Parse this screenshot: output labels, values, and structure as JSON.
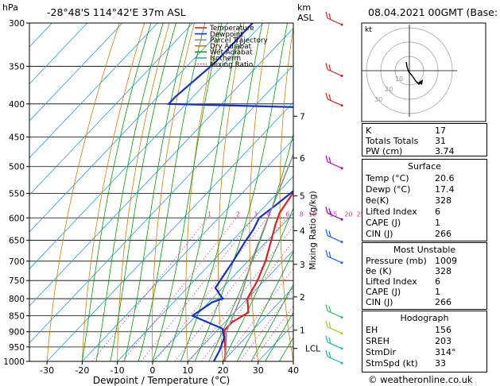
{
  "header": {
    "location": "-28°48'S  114°42'E  37m  ASL",
    "datetime": "08.04.2021  00GMT  (Base: 00)",
    "hpa_label": "hPa",
    "km_label": "km",
    "asl_label": "ASL"
  },
  "chart_data": {
    "type": "line",
    "title": "",
    "xlabel": "Dewpoint / Temperature (°C)",
    "ylabel": "hPa",
    "secondary_ylabel": "Mixing Ratio (g/kg)",
    "xlim": [
      -35,
      40
    ],
    "ylim": [
      1000,
      300
    ],
    "y_scale": "log",
    "x_ticks": [
      "-30",
      "-20",
      "-10",
      "0",
      "10",
      "20",
      "30",
      "40"
    ],
    "pressure_levels": [
      "300",
      "350",
      "400",
      "450",
      "500",
      "550",
      "600",
      "650",
      "700",
      "750",
      "800",
      "850",
      "900",
      "950",
      "1000"
    ],
    "km_ticks": [
      {
        "label": "7",
        "p": 418
      },
      {
        "label": "6",
        "p": 485
      },
      {
        "label": "5",
        "p": 555
      },
      {
        "label": "4",
        "p": 628
      },
      {
        "label": "3",
        "p": 708
      },
      {
        "label": "2",
        "p": 795
      },
      {
        "label": "1",
        "p": 895
      },
      {
        "label": "LCL",
        "p": 955
      }
    ],
    "mixing_ratio_labels": [
      "1",
      "2",
      "3",
      "4",
      "6",
      "8",
      "10",
      "15",
      "20",
      "25"
    ],
    "series": [
      {
        "name": "Temperature",
        "color": "#e02020",
        "points": [
          [
            -18,
            335
          ],
          [
            -16,
            365
          ],
          [
            -14.5,
            398
          ],
          [
            -14,
            405
          ],
          [
            -11,
            455
          ],
          [
            -9,
            495
          ],
          [
            -6,
            540
          ],
          [
            -4,
            590
          ],
          [
            -2,
            615
          ],
          [
            1,
            650
          ],
          [
            5,
            700
          ],
          [
            8,
            750
          ],
          [
            10,
            800
          ],
          [
            14,
            840
          ],
          [
            12,
            870
          ],
          [
            12,
            895
          ],
          [
            15,
            930
          ],
          [
            18,
            965
          ],
          [
            20.6,
            1000
          ]
        ]
      },
      {
        "name": "Dewpoint",
        "color": "#1030d0",
        "points": [
          [
            -63,
            300
          ],
          [
            -63,
            345
          ],
          [
            -65,
            390
          ],
          [
            -65,
            400
          ],
          [
            -25,
            405
          ],
          [
            -16,
            420
          ],
          [
            -11,
            470
          ],
          [
            -11,
            497
          ],
          [
            -8,
            510
          ],
          [
            -6,
            545
          ],
          [
            -7.5,
            580
          ],
          [
            -8.5,
            600
          ],
          [
            -7,
            625
          ],
          [
            -6,
            655
          ],
          [
            -4,
            705
          ],
          [
            -2,
            770
          ],
          [
            3,
            800
          ],
          [
            1,
            810
          ],
          [
            -1,
            850
          ],
          [
            11,
            890
          ],
          [
            14,
            920
          ],
          [
            16,
            960
          ],
          [
            17.4,
            1000
          ]
        ]
      },
      {
        "name": "Parcel Trajectory",
        "color": "#909090",
        "points": [
          [
            -36,
            300
          ],
          [
            -24,
            400
          ],
          [
            -14,
            500
          ],
          [
            -6,
            600
          ],
          [
            1,
            700
          ],
          [
            8,
            800
          ],
          [
            13,
            900
          ],
          [
            17,
            950
          ],
          [
            20.6,
            1000
          ]
        ]
      }
    ],
    "legend": [
      {
        "label": "Temperature",
        "color": "#e02020",
        "dash": "solid"
      },
      {
        "label": "Dewpoint",
        "color": "#1030d0",
        "dash": "solid"
      },
      {
        "label": "Parcel Trajectory",
        "color": "#909090",
        "dash": "solid"
      },
      {
        "label": "Dry Adiabat",
        "color": "#d08000",
        "dash": "solid"
      },
      {
        "label": "Wet Adiabat",
        "color": "#00a000",
        "dash": "solid"
      },
      {
        "label": "Isotherm",
        "color": "#20a0e0",
        "dash": "solid"
      },
      {
        "label": "Mixing Ratio",
        "color": "#e030b0",
        "dash": "dotted"
      }
    ],
    "grid": true,
    "legend_placement": "top-left"
  },
  "hodograph": {
    "label": "kt",
    "ring_labels": [
      "10",
      "20",
      "30"
    ]
  },
  "indices": {
    "rows": [
      {
        "label": "K",
        "value": "17"
      },
      {
        "label": "Totals Totals",
        "value": "31"
      },
      {
        "label": "PW (cm)",
        "value": "3.74"
      }
    ]
  },
  "surface": {
    "title": "Surface",
    "rows": [
      {
        "label": "Temp (°C)",
        "value": "20.6"
      },
      {
        "label": "Dewp (°C)",
        "value": "17.4"
      },
      {
        "label": "θe(K)",
        "value": "328"
      },
      {
        "label": "Lifted Index",
        "value": "6"
      },
      {
        "label": "CAPE (J)",
        "value": "1"
      },
      {
        "label": "CIN (J)",
        "value": "266"
      }
    ]
  },
  "most_unstable": {
    "title": "Most Unstable",
    "rows": [
      {
        "label": "Pressure (mb)",
        "value": "1009"
      },
      {
        "label": "θe (K)",
        "value": "328"
      },
      {
        "label": "Lifted Index",
        "value": "6"
      },
      {
        "label": "CAPE (J)",
        "value": "1"
      },
      {
        "label": "CIN (J)",
        "value": "266"
      }
    ]
  },
  "hodograph_stats": {
    "title": "Hodograph",
    "rows": [
      {
        "label": "EH",
        "value": "156"
      },
      {
        "label": "SREH",
        "value": "203"
      },
      {
        "label": "StmDir",
        "value": "314°"
      },
      {
        "label": "StmSpd (kt)",
        "value": "33"
      }
    ]
  },
  "footer": {
    "copyright": "© weatheronline.co.uk"
  }
}
